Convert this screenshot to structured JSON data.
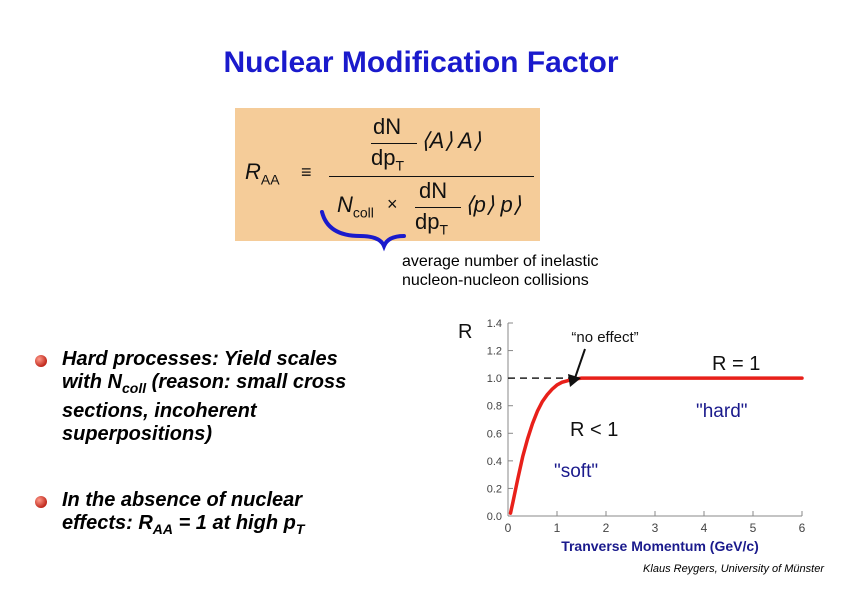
{
  "title": "Nuclear Modification Factor",
  "formula": {
    "r": "R",
    "r_sub": "AA",
    "equals": "≡",
    "dn": "dN",
    "dpt": "dp",
    "dpt_sub": "T",
    "aa_num": "⟨A⟩ A⟩",
    "ncoll": "N",
    "ncoll_sub": "coll",
    "times": "×",
    "pp_den": "⟨p⟩ p⟩"
  },
  "annotation": [
    "average number of inelastic",
    "nucleon-nucleon collisions"
  ],
  "bullets": [
    {
      "lines": [
        "Hard processes: Yield scales",
        "with N",
        "coll",
        " (reason: small cross",
        "sections, incoherent",
        "superpositions)"
      ]
    },
    {
      "lines": [
        "In the absence of nuclear",
        "effects: R",
        "AA",
        " = 1 at high p",
        "T"
      ]
    }
  ],
  "credit": "Klaus Reygers, University of Münster",
  "colors": {
    "title": "#1a1acc",
    "formula_bg": "#f5cc99",
    "curve": "#e8201a",
    "bracket": "#1a1acc",
    "labels": "#1a1a8c"
  },
  "chart_data": {
    "type": "line",
    "ylabel": "R",
    "xlabel": "Tranverse Momentum (GeV/c)",
    "xlim": [
      0,
      6
    ],
    "ylim": [
      0,
      1.4
    ],
    "xticks": [
      "0",
      "1",
      "2",
      "3",
      "4",
      "5",
      "6"
    ],
    "yticks": [
      "0.0",
      "0.2",
      "0.4",
      "0.6",
      "0.8",
      "1.0",
      "1.2",
      "1.4"
    ],
    "series": [
      {
        "x": [
          0.05,
          0.1,
          0.2,
          0.3,
          0.4,
          0.5,
          0.6,
          0.7,
          0.8,
          0.9,
          1.0,
          1.1,
          1.2,
          1.3,
          1.4,
          1.5,
          1.6,
          1.8,
          2.0,
          2.2,
          2.5,
          3.0,
          3.5,
          4.0,
          4.5,
          5.0,
          5.5,
          6.0
        ],
        "y": [
          0.02,
          0.1,
          0.27,
          0.43,
          0.56,
          0.67,
          0.76,
          0.83,
          0.88,
          0.92,
          0.95,
          0.97,
          0.98,
          0.99,
          0.995,
          1.0,
          1.0,
          1.0,
          1.0,
          1.0,
          1.0,
          1.0,
          1.0,
          1.0,
          1.0,
          1.0,
          1.0,
          1.0
        ]
      }
    ],
    "reference_line": {
      "y": 1.0
    },
    "annotations": [
      "“no effect”",
      "R = 1",
      "\"hard\"",
      "R < 1",
      "\"soft\""
    ]
  }
}
